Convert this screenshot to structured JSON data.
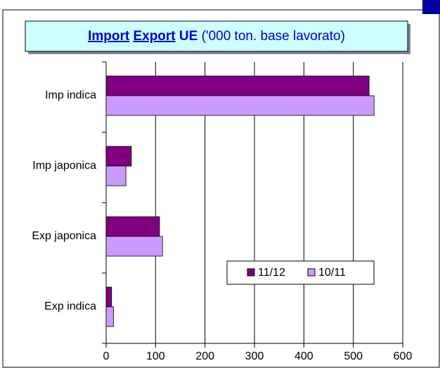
{
  "chart_data": {
    "type": "hbar",
    "title_parts": [
      "Import",
      "Export",
      "UE",
      "('000 ton. base lavorato)"
    ],
    "categories": [
      "Imp indica",
      "Imp japonica",
      "Exp japonica",
      "Exp indica"
    ],
    "series": [
      {
        "name": "11/12",
        "color": "#800080",
        "values": [
          532,
          51,
          108,
          11
        ]
      },
      {
        "name": "10/11",
        "color": "#cc99ff",
        "values": [
          542,
          40,
          114,
          15
        ]
      }
    ],
    "xlim": [
      0,
      600
    ],
    "xticks": [
      0,
      100,
      200,
      300,
      400,
      500,
      600
    ],
    "grid": true
  }
}
